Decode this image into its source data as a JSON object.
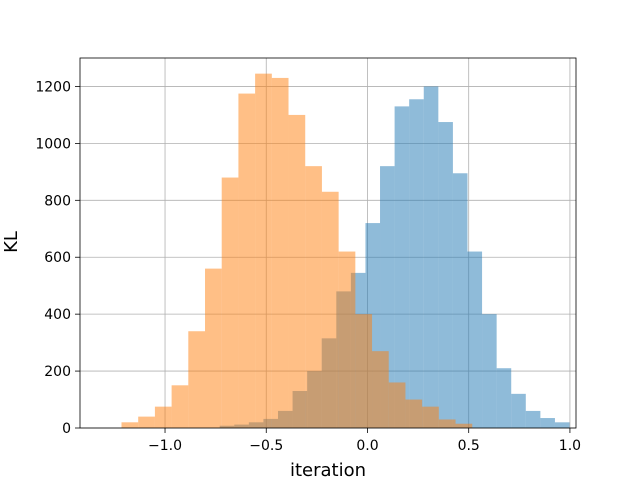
{
  "chart_data": {
    "type": "bar",
    "title": "",
    "xlabel": "iteration",
    "ylabel": "KL",
    "xlim": [
      -1.42,
      1.03
    ],
    "ylim": [
      0,
      1300
    ],
    "xticks": [
      -1.0,
      -0.5,
      0.0,
      0.5,
      1.0
    ],
    "xtick_labels": [
      "−1.0",
      "−0.5",
      "0.0",
      "0.5",
      "1.0"
    ],
    "yticks": [
      0,
      200,
      400,
      600,
      800,
      1000,
      1200
    ],
    "ytick_labels": [
      "0",
      "200",
      "400",
      "600",
      "800",
      "1000",
      "1200"
    ],
    "grid": true,
    "legend": "none",
    "series": [
      {
        "color": "#1f77b4",
        "opacity": 0.5,
        "x0": -0.73,
        "bin_width": 0.072,
        "values": [
          8,
          12,
          20,
          32,
          60,
          130,
          200,
          315,
          480,
          545,
          720,
          920,
          1130,
          1155,
          1200,
          1075,
          895,
          620,
          400,
          210,
          120,
          60,
          35,
          20
        ]
      },
      {
        "color": "#ff7f0e",
        "opacity": 0.5,
        "x0": -1.215,
        "bin_width": 0.0825,
        "values": [
          20,
          40,
          75,
          150,
          340,
          560,
          880,
          1175,
          1245,
          1230,
          1100,
          920,
          830,
          620,
          400,
          270,
          160,
          100,
          75,
          30,
          15
        ]
      }
    ]
  }
}
